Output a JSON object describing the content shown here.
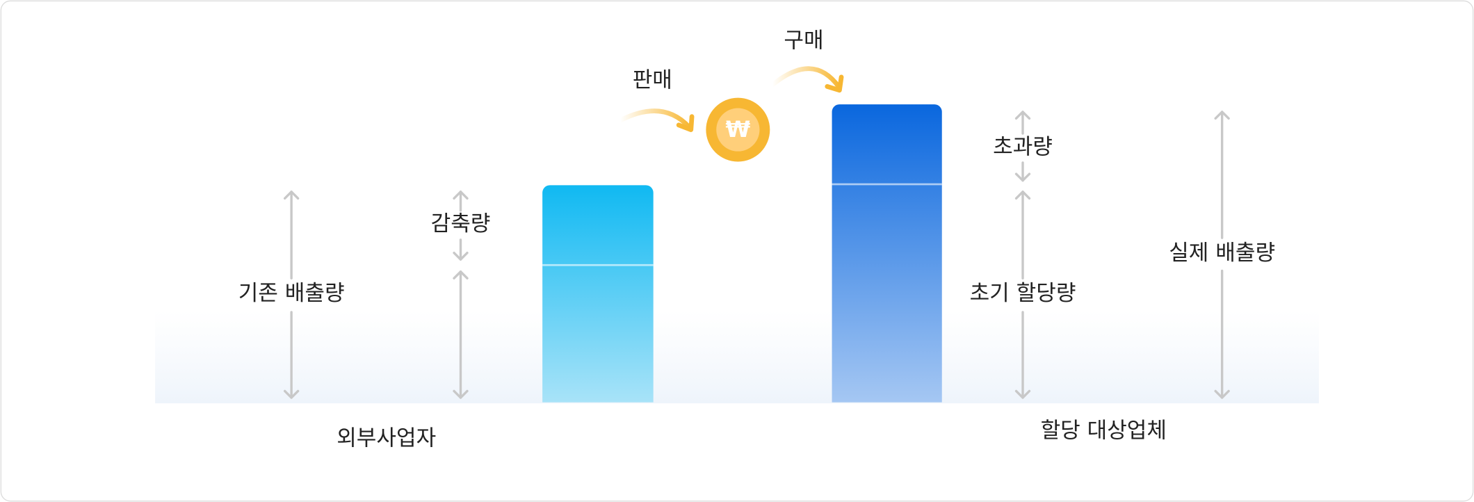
{
  "labels": {
    "sell": "판매",
    "buy": "구매",
    "currency": "₩",
    "reduction": "감축량",
    "baseline": "기존 배출량",
    "excess": "초과량",
    "initial": "초기 할당량",
    "actual": "실제 배출량"
  },
  "groups": [
    "외부사업자",
    "할당 대상업체"
  ]
}
